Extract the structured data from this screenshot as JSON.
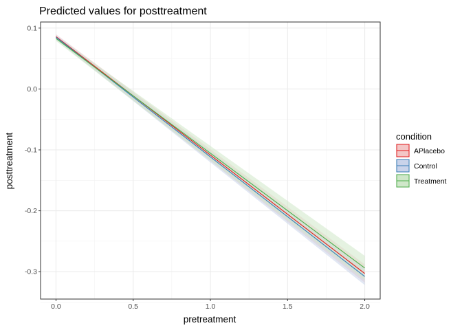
{
  "chart_data": {
    "type": "line",
    "title": "Predicted values for posttreatment",
    "xlabel": "pretreatment",
    "ylabel": "posttreatment",
    "xlim": [
      -0.1,
      2.1
    ],
    "ylim": [
      -0.345,
      0.11
    ],
    "x_ticks": [
      "0.0",
      "0.5",
      "1.0",
      "1.5",
      "2.0"
    ],
    "y_ticks": [
      "0.1",
      "0.0",
      "-0.1",
      "-0.2",
      "-0.3"
    ],
    "grid": true,
    "legend_title": "condition",
    "legend_position": "right",
    "x": [
      0.0,
      2.0
    ],
    "series": [
      {
        "name": "APlacebo",
        "color": "#e41a1c",
        "fill": "#f3c6c6",
        "values": [
          0.086,
          -0.303
        ],
        "lower": [
          0.082,
          -0.318
        ],
        "upper": [
          0.09,
          -0.288
        ]
      },
      {
        "name": "Control",
        "color": "#377eb8",
        "fill": "#c9d3ea",
        "values": [
          0.085,
          -0.308
        ],
        "lower": [
          0.081,
          -0.322
        ],
        "upper": [
          0.089,
          -0.294
        ]
      },
      {
        "name": "Treatment",
        "color": "#4daf4a",
        "fill": "#cfe7c9",
        "values": [
          0.083,
          -0.294
        ],
        "lower": [
          0.079,
          -0.314
        ],
        "upper": [
          0.087,
          -0.274
        ]
      }
    ]
  }
}
